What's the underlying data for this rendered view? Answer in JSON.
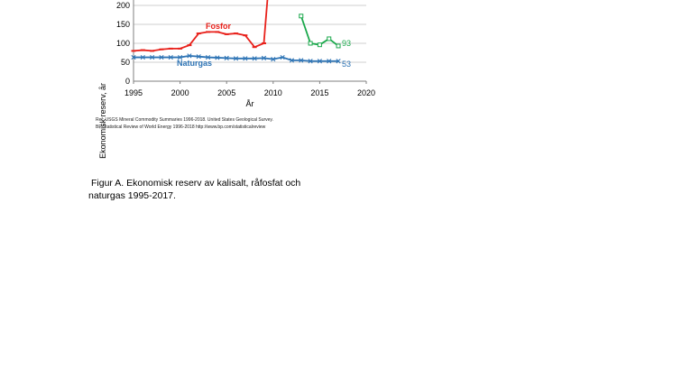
{
  "chart_data": {
    "type": "line",
    "title": "",
    "xlabel": "År",
    "ylabel": "Ekonomisk reserv, år",
    "xlim": [
      1995,
      2020
    ],
    "ylim": [
      0,
      200
    ],
    "x_ticks": [
      1995,
      2000,
      2005,
      2010,
      2015,
      2020
    ],
    "y_ticks": [
      0,
      50,
      100,
      150,
      200
    ],
    "grid": "horizontal",
    "series": [
      {
        "name": "Fosfor",
        "color": "#e8211b",
        "marker": "dash",
        "x": [
          1995,
          1996,
          1997,
          1998,
          1999,
          2000,
          2001,
          2002,
          2003,
          2004,
          2005,
          2006,
          2007,
          2008,
          2009,
          2010
        ],
        "y": [
          80,
          82,
          80,
          84,
          86,
          86,
          95,
          126,
          130,
          130,
          124,
          126,
          121,
          90,
          100,
          400
        ]
      },
      {
        "name": "Naturgas",
        "color": "#2e74b5",
        "marker": "x",
        "x": [
          1995,
          1996,
          1997,
          1998,
          1999,
          2000,
          2001,
          2002,
          2003,
          2004,
          2005,
          2006,
          2007,
          2008,
          2009,
          2010,
          2011,
          2012,
          2013,
          2014,
          2015,
          2016,
          2017
        ],
        "y": [
          63,
          63,
          63,
          63,
          63,
          63,
          67,
          65,
          63,
          62,
          61,
          60,
          60,
          60,
          61,
          58,
          63,
          55,
          55,
          53,
          53,
          53,
          53
        ]
      },
      {
        "name": "",
        "color": "#1aa84b",
        "marker": "square",
        "x": [
          2013,
          2014,
          2015,
          2016,
          2017
        ],
        "y": [
          172,
          100,
          96,
          112,
          93
        ]
      }
    ],
    "annotations": [
      {
        "text": "Fosfor",
        "color": "#e8211b"
      },
      {
        "text": "Naturgas",
        "color": "#2e74b5"
      },
      {
        "text": "93",
        "color": "#1aa84b"
      },
      {
        "text": "53",
        "color": "#2e74b5"
      }
    ]
  },
  "references": [
    "Ref: USGS Mineral Commodity Summaries 1996-2018.  United States Geological Survey.",
    "BP Statistical Review of World Energy 1996-2018 http://www.bp.com/statisticalreview"
  ],
  "caption": {
    "line1": "Figur A. Ekonomisk reserv av kalisalt, råfosfat och",
    "line2": "naturgas 1995-2017."
  }
}
